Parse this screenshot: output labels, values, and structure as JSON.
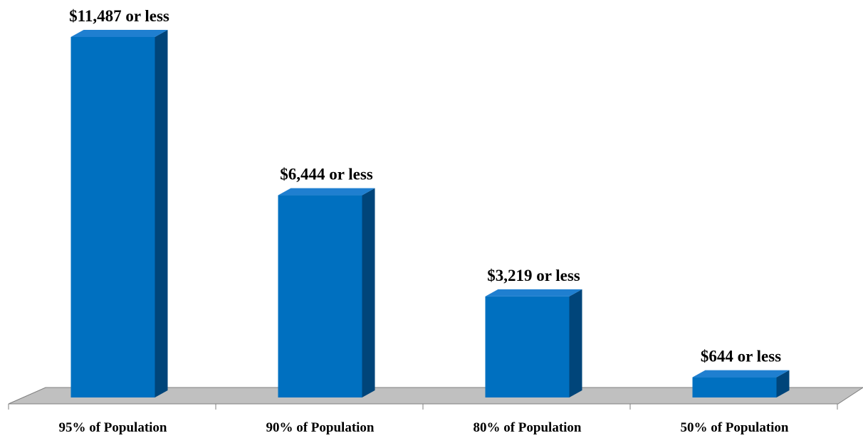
{
  "chart_data": {
    "type": "bar",
    "categories": [
      "95% of Population",
      "90% of Population",
      "80% of Population",
      "50% of Population"
    ],
    "values": [
      11487,
      6444,
      3219,
      644
    ],
    "data_labels": [
      "$11,487 or less",
      "$6,444 or less",
      "$3,219 or less",
      "$644 or less"
    ],
    "title": "",
    "xlabel": "",
    "ylabel": "",
    "ylim": [
      0,
      11487
    ],
    "grid": false,
    "legend": "none",
    "style": "3d-column"
  },
  "colors": {
    "bar_front": "#0070c0",
    "bar_top": "#1f7fd0",
    "bar_side": "#00457a",
    "floor": "#c0c0c0",
    "floor_edge": "#7f7f7f"
  }
}
